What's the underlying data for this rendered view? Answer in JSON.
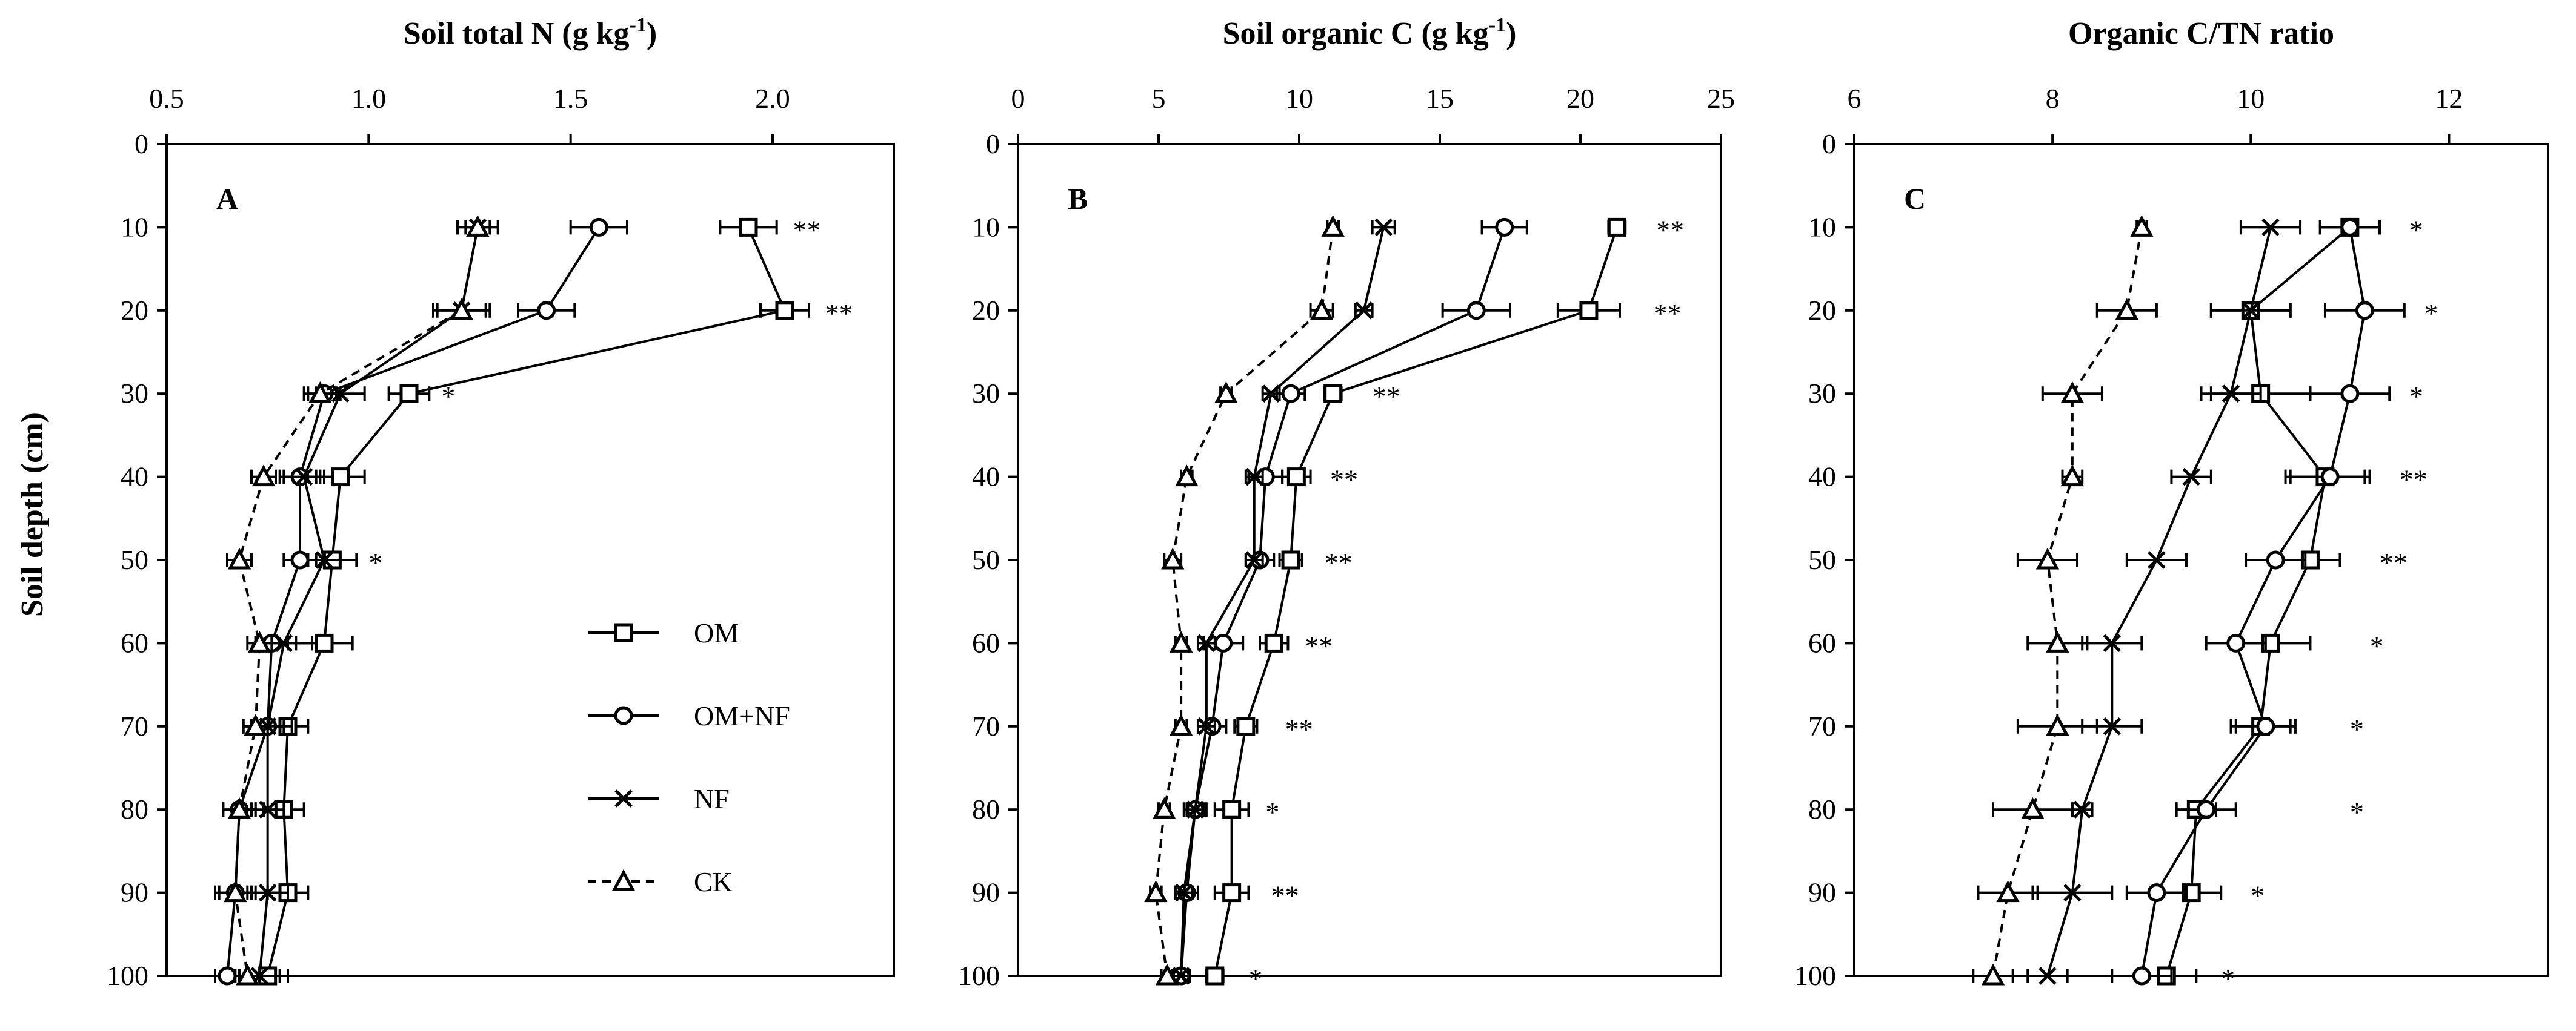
{
  "chart_data": [
    {
      "type": "line",
      "panel_label": "A",
      "title_main": "Soil  total N (g kg",
      "title_sup": "-1",
      "title_end": ")",
      "xticks": [
        "0.5",
        "1.0",
        "1.5",
        "2.0"
      ],
      "xtick_values": [
        0.5,
        1.0,
        1.5,
        2.0
      ],
      "xlim": [
        0.5,
        2.3
      ],
      "ylim": [
        0,
        100
      ],
      "y": [
        10,
        20,
        30,
        40,
        50,
        60,
        70,
        80,
        90,
        100
      ],
      "series": [
        {
          "name": "OM",
          "values": [
            1.94,
            2.03,
            1.1,
            0.93,
            0.91,
            0.89,
            0.8,
            0.79,
            0.8,
            0.75
          ],
          "err": [
            0.07,
            0.06,
            0.05,
            0.06,
            0.06,
            0.07,
            0.05,
            0.05,
            0.05,
            0.05
          ]
        },
        {
          "name": "OM+NF",
          "values": [
            1.57,
            1.44,
            0.89,
            0.83,
            0.83,
            0.76,
            0.75,
            0.68,
            0.67,
            0.65
          ],
          "err": [
            0.07,
            0.07,
            0.04,
            0.05,
            0.04,
            0.04,
            0.04,
            0.04,
            0.05,
            0.03
          ]
        },
        {
          "name": "NF",
          "values": [
            1.27,
            1.23,
            0.93,
            0.84,
            0.89,
            0.79,
            0.75,
            0.75,
            0.75,
            0.73
          ],
          "err": [
            0.05,
            0.07,
            0.06,
            0.05,
            0.04,
            0.07,
            0.06,
            0.04,
            0.05,
            0.05
          ]
        },
        {
          "name": "CK",
          "values": [
            1.27,
            1.23,
            0.88,
            0.74,
            0.68,
            0.73,
            0.72,
            0.68,
            0.67,
            0.7
          ],
          "err": [
            0.03,
            0.06,
            0.04,
            0.03,
            0.03,
            0.03,
            0.03,
            0.04,
            0.04,
            0.03
          ]
        }
      ],
      "significance": [
        "**",
        "**",
        "*",
        "",
        "*",
        "",
        "",
        "",
        "",
        ""
      ],
      "sig_x": [
        2.05,
        2.13,
        1.18,
        0,
        1.0,
        0,
        0,
        0,
        0,
        0
      ]
    },
    {
      "type": "line",
      "panel_label": "B",
      "title_main": "Soil organic C (g kg",
      "title_sup": "-1",
      "title_end": ")",
      "xticks": [
        "0",
        "5",
        "10",
        "15",
        "20",
        "25"
      ],
      "xtick_values": [
        0,
        5,
        10,
        15,
        20,
        25
      ],
      "xlim": [
        0,
        25
      ],
      "ylim": [
        0,
        100
      ],
      "y": [
        10,
        20,
        30,
        40,
        50,
        60,
        70,
        80,
        90,
        100
      ],
      "series": [
        {
          "name": "OM",
          "values": [
            21.3,
            20.3,
            11.2,
            9.9,
            9.7,
            9.1,
            8.1,
            7.6,
            7.6,
            7.0
          ],
          "err": [
            0.3,
            1.1,
            0.3,
            0.5,
            0.4,
            0.5,
            0.4,
            0.6,
            0.6,
            0.3
          ]
        },
        {
          "name": "OM+NF",
          "values": [
            17.3,
            16.3,
            9.7,
            8.8,
            8.6,
            7.3,
            6.9,
            6.3,
            6.0,
            5.8
          ],
          "err": [
            0.8,
            1.2,
            0.5,
            0.6,
            0.5,
            0.7,
            0.5,
            0.4,
            0.4,
            0.3
          ]
        },
        {
          "name": "NF",
          "values": [
            13.0,
            12.3,
            9.0,
            8.4,
            8.4,
            6.7,
            6.7,
            6.3,
            5.9,
            5.8
          ],
          "err": [
            0.4,
            0.3,
            0.3,
            0.3,
            0.3,
            0.3,
            0.3,
            0.3,
            0.3,
            0.3
          ]
        },
        {
          "name": "CK",
          "values": [
            11.2,
            10.8,
            7.4,
            6.0,
            5.5,
            5.8,
            5.8,
            5.2,
            4.9,
            5.3
          ],
          "err": [
            0.2,
            0.4,
            0.2,
            0.2,
            0.3,
            0.2,
            0.2,
            0.2,
            0.2,
            0.2
          ]
        }
      ],
      "significance": [
        "**",
        "**",
        "**",
        "**",
        "**",
        "**",
        "**",
        "*",
        "**",
        "*"
      ],
      "sig_x": [
        22.7,
        22.6,
        12.6,
        11.1,
        10.9,
        10.2,
        9.5,
        8.8,
        9.0,
        8.2
      ]
    },
    {
      "type": "line",
      "panel_label": "C",
      "title_main": "Organic C/TN ratio",
      "title_sup": "",
      "title_end": "",
      "xticks": [
        "6",
        "8",
        "10",
        "12"
      ],
      "xtick_values": [
        6,
        8,
        10,
        12
      ],
      "xlim": [
        6,
        13
      ],
      "ylim": [
        0,
        100
      ],
      "y": [
        10,
        20,
        30,
        40,
        50,
        60,
        70,
        80,
        90,
        100
      ],
      "series": [
        {
          "name": "OM",
          "values": [
            11.0,
            10.0,
            10.1,
            10.75,
            10.6,
            10.2,
            10.1,
            9.45,
            9.4,
            9.15
          ],
          "err": [
            0.3,
            0.4,
            0.5,
            0.4,
            0.3,
            0.4,
            0.3,
            0.2,
            0.3,
            0.3
          ]
        },
        {
          "name": "OM+NF",
          "values": [
            11.0,
            11.15,
            11.0,
            10.8,
            10.25,
            9.85,
            10.15,
            9.55,
            9.05,
            8.9
          ],
          "err": [
            0.3,
            0.4,
            0.4,
            0.4,
            0.3,
            0.3,
            0.3,
            0.3,
            0.3,
            0.3
          ]
        },
        {
          "name": "NF",
          "values": [
            10.2,
            10.0,
            9.8,
            9.4,
            9.05,
            8.6,
            8.6,
            8.3,
            8.2,
            7.95
          ],
          "err": [
            0.3,
            0.4,
            0.3,
            0.2,
            0.3,
            0.3,
            0.3,
            0.1,
            0.4,
            0.2
          ]
        },
        {
          "name": "CK",
          "values": [
            8.9,
            8.75,
            8.2,
            8.2,
            7.95,
            8.05,
            8.05,
            7.8,
            7.55,
            7.4
          ],
          "err": [
            0.05,
            0.3,
            0.3,
            0.1,
            0.3,
            0.3,
            0.4,
            0.4,
            0.3,
            0.2
          ]
        }
      ],
      "significance": [
        "*",
        "*",
        "*",
        "**",
        "**",
        "*",
        "*",
        "*",
        "*",
        "*"
      ],
      "sig_x": [
        11.6,
        11.75,
        11.6,
        11.5,
        11.3,
        11.2,
        11.0,
        11.0,
        10.0,
        9.7
      ]
    }
  ],
  "shared": {
    "ylabel": "Soil depth (cm)",
    "yticks": [
      "0",
      "10",
      "20",
      "30",
      "40",
      "50",
      "60",
      "70",
      "80",
      "90",
      "100"
    ],
    "ytick_values": [
      0,
      10,
      20,
      30,
      40,
      50,
      60,
      70,
      80,
      90,
      100
    ]
  },
  "legend": [
    {
      "name": "OM",
      "marker": "square",
      "dashed": false
    },
    {
      "name": "OM+NF",
      "marker": "circle",
      "dashed": false
    },
    {
      "name": "NF",
      "marker": "cross",
      "dashed": false
    },
    {
      "name": "CK",
      "marker": "triangle",
      "dashed": true
    }
  ]
}
